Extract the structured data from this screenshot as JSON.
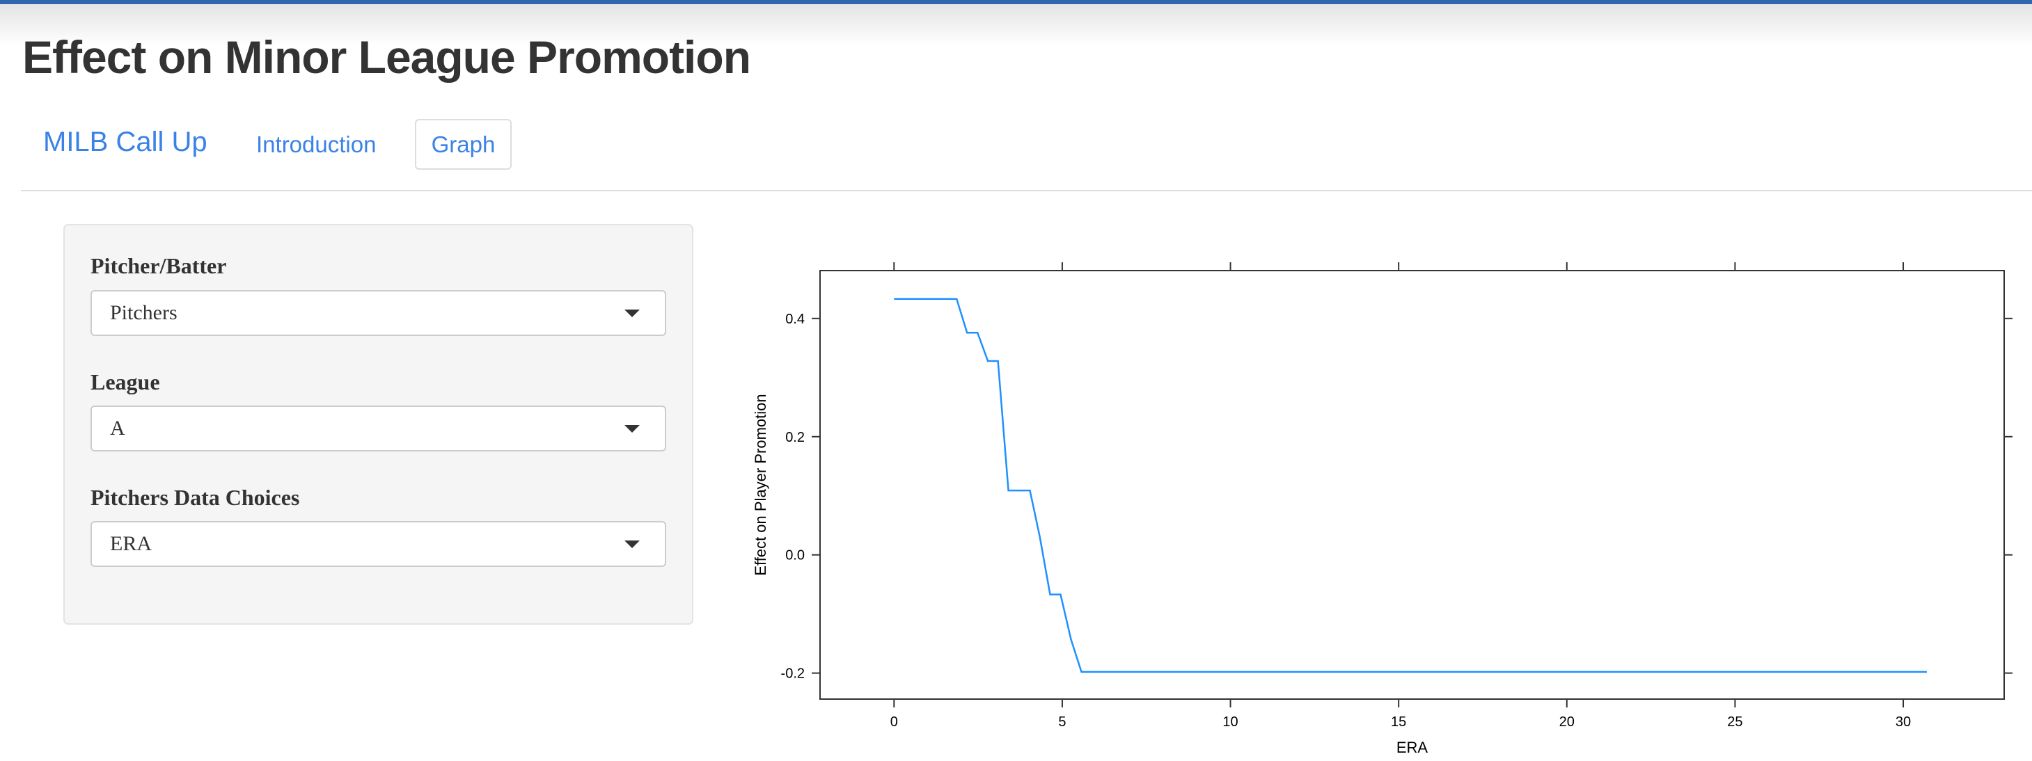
{
  "page": {
    "title": "Effect on Minor League Promotion"
  },
  "nav": {
    "brand": "MILB Call Up",
    "tabs": [
      {
        "label": "Introduction",
        "active": false
      },
      {
        "label": "Graph",
        "active": true
      }
    ]
  },
  "sidebar": {
    "fields": [
      {
        "label": "Pitcher/Batter",
        "value": "Pitchers"
      },
      {
        "label": "League",
        "value": "A"
      },
      {
        "label": "Pitchers Data Choices",
        "value": "ERA"
      }
    ]
  },
  "colors": {
    "accent": "#3a82e6",
    "line": "#1e90ff",
    "top_bar": "#2f66ad"
  },
  "chart_data": {
    "type": "line",
    "xlabel": "ERA",
    "ylabel": "Effect on Player Promotion",
    "xlim": [
      -2.2,
      33.0
    ],
    "ylim": [
      -0.244,
      0.481
    ],
    "xticks": [
      0,
      5,
      10,
      15,
      20,
      25,
      30
    ],
    "yticks": [
      -0.2,
      0.0,
      0.2,
      0.4
    ],
    "xtick_labels": [
      "0",
      "5",
      "10",
      "15",
      "20",
      "25",
      "30"
    ],
    "ytick_labels": [
      "-0.2",
      "0.0",
      "0.2",
      "0.4"
    ],
    "grid": false,
    "series": [
      {
        "x": [
          0,
          1.86,
          2.17,
          2.48,
          2.79,
          3.09,
          3.4,
          4.04,
          4.33,
          4.64,
          4.95,
          5.26,
          5.57,
          30.7
        ],
        "y": [
          0.433,
          0.433,
          0.376,
          0.376,
          0.328,
          0.328,
          0.109,
          0.109,
          0.031,
          -0.067,
          -0.067,
          -0.143,
          -0.198,
          -0.198
        ]
      }
    ]
  }
}
